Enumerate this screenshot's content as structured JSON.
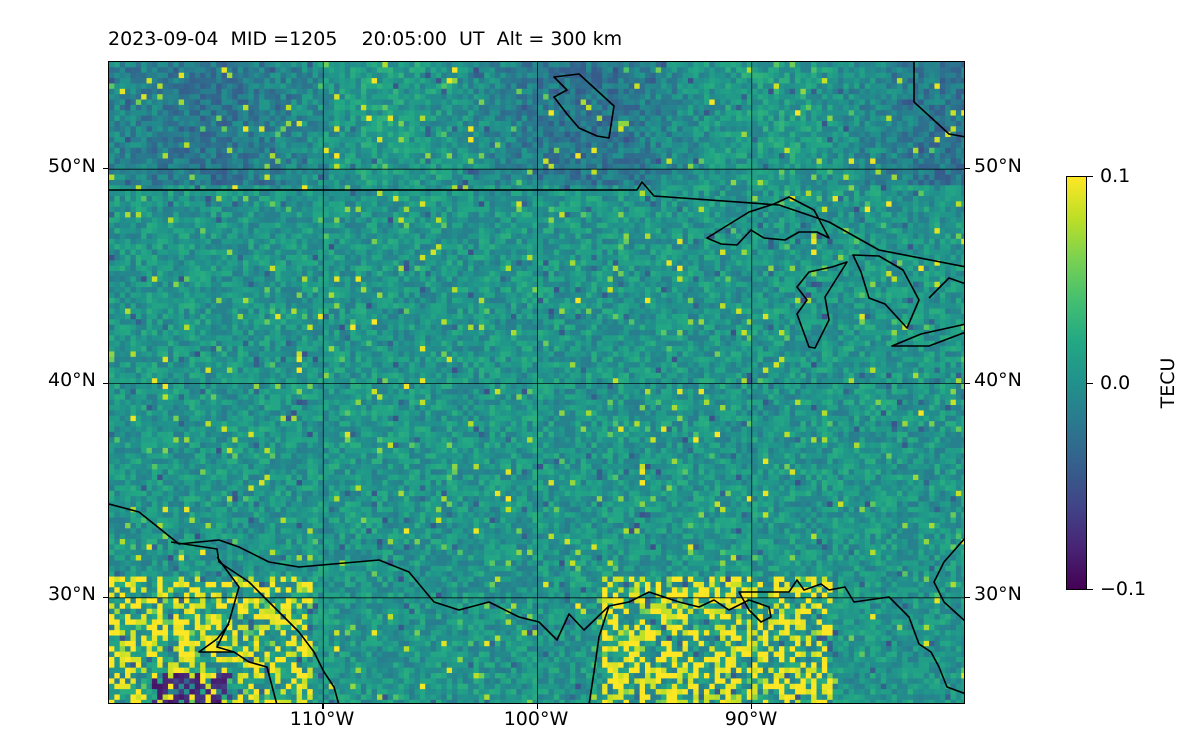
{
  "header": {
    "title": "2023-09-04  MID =1205    20:05:00  UT  Alt = 300 km"
  },
  "map": {
    "projection": "lat-lon",
    "extent": {
      "lon_min": -120,
      "lon_max": -80,
      "lat_min": 25,
      "lat_max": 55
    },
    "gridlines": true,
    "lat_ticks": [
      {
        "value": 50,
        "label": "50°N"
      },
      {
        "value": 40,
        "label": "40°N"
      },
      {
        "value": 30,
        "label": "30°N"
      }
    ],
    "lon_ticks": [
      {
        "value": -110,
        "label": "110°W"
      },
      {
        "value": -100,
        "label": "100°W"
      },
      {
        "value": -90,
        "label": "90°W"
      }
    ],
    "features": [
      "coastlines",
      "country borders",
      "Great Lakes"
    ]
  },
  "colorbar": {
    "colormap": "viridis",
    "min": -0.1,
    "max": 0.1,
    "label": "TECU",
    "ticks": [
      {
        "value": 0.1,
        "label": "0.1"
      },
      {
        "value": 0.0,
        "label": "0.0"
      },
      {
        "value": -0.1,
        "label": "−0.1"
      }
    ]
  }
}
